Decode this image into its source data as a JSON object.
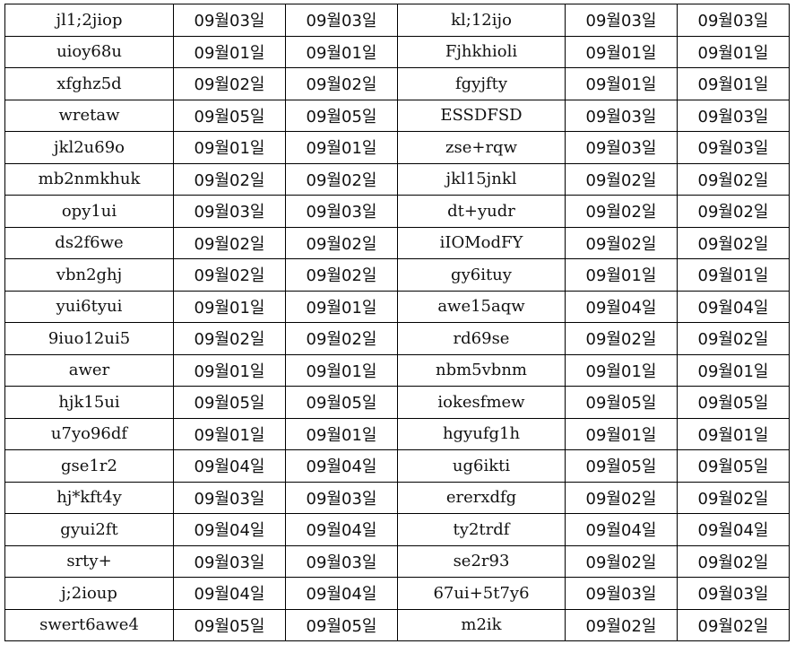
{
  "rows": [
    {
      "a": "jl1;2jiop",
      "b": "09월03일",
      "c": "09월03일",
      "d": "kl;12ijo",
      "e": "09월03일",
      "f": "09월03일"
    },
    {
      "a": "uioy68u",
      "b": "09월01일",
      "c": "09월01일",
      "d": "Fjhkhioli",
      "e": "09월01일",
      "f": "09월01일"
    },
    {
      "a": "xfghz5d",
      "b": "09월02일",
      "c": "09월02일",
      "d": "fgyjfty",
      "e": "09월01일",
      "f": "09월01일"
    },
    {
      "a": "wretaw",
      "b": "09월05일",
      "c": "09월05일",
      "d": "ESSDFSD",
      "e": "09월03일",
      "f": "09월03일"
    },
    {
      "a": "jkl2u69o",
      "b": "09월01일",
      "c": "09월01일",
      "d": "zse+rqw",
      "e": "09월03일",
      "f": "09월03일"
    },
    {
      "a": "mb2nmkhuk",
      "b": "09월02일",
      "c": "09월02일",
      "d": "jkl15jnkl",
      "e": "09월02일",
      "f": "09월02일"
    },
    {
      "a": "opy1ui",
      "b": "09월03일",
      "c": "09월03일",
      "d": "dt+yudr",
      "e": "09월02일",
      "f": "09월02일"
    },
    {
      "a": "ds2f6we",
      "b": "09월02일",
      "c": "09월02일",
      "d": "iIOModFY",
      "e": "09월02일",
      "f": "09월02일"
    },
    {
      "a": "vbn2ghj",
      "b": "09월02일",
      "c": "09월02일",
      "d": "gy6ituy",
      "e": "09월01일",
      "f": "09월01일"
    },
    {
      "a": "yui6tyui",
      "b": "09월01일",
      "c": "09월01일",
      "d": "awe15aqw",
      "e": "09월04일",
      "f": "09월04일"
    },
    {
      "a": "9iuo12ui5",
      "b": "09월02일",
      "c": "09월02일",
      "d": "rd69se",
      "e": "09월02일",
      "f": "09월02일"
    },
    {
      "a": "awer",
      "b": "09월01일",
      "c": "09월01일",
      "d": "nbm5vbnm",
      "e": "09월01일",
      "f": "09월01일"
    },
    {
      "a": "hjk15ui",
      "b": "09월05일",
      "c": "09월05일",
      "d": "iokesfmew",
      "e": "09월05일",
      "f": "09월05일"
    },
    {
      "a": "u7yo96df",
      "b": "09월01일",
      "c": "09월01일",
      "d": "hgyufg1h",
      "e": "09월01일",
      "f": "09월01일"
    },
    {
      "a": "gse1r2",
      "b": "09월04일",
      "c": "09월04일",
      "d": "ug6ikti",
      "e": "09월05일",
      "f": "09월05일"
    },
    {
      "a": "hj*kft4y",
      "b": "09월03일",
      "c": "09월03일",
      "d": "ererxdfg",
      "e": "09월02일",
      "f": "09월02일"
    },
    {
      "a": "gyui2ft",
      "b": "09월04일",
      "c": "09월04일",
      "d": "ty2trdf",
      "e": "09월04일",
      "f": "09월04일"
    },
    {
      "a": "srty+",
      "b": "09월03일",
      "c": "09월03일",
      "d": "se2r93",
      "e": "09월02일",
      "f": "09월02일"
    },
    {
      "a": "j;2ioup",
      "b": "09월04일",
      "c": "09월04일",
      "d": "67ui+5t7y6",
      "e": "09월03일",
      "f": "09월03일"
    },
    {
      "a": "swert6awe4",
      "b": "09월05일",
      "c": "09월05일",
      "d": "m2ik",
      "e": "09월02일",
      "f": "09월02일"
    }
  ]
}
